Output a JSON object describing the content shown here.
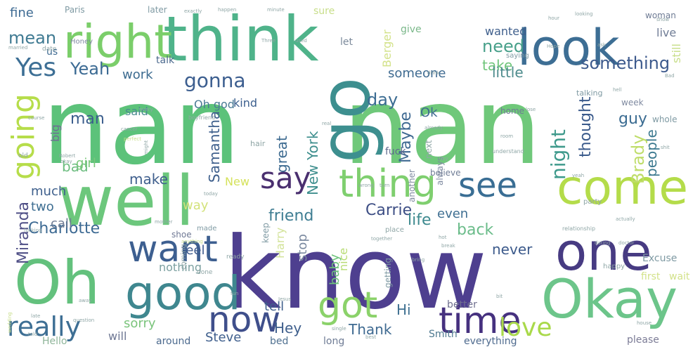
{
  "words": [
    {
      "text": "nan",
      "color": "#5cc27a"
    },
    {
      "text": "nan",
      "color": "#6fc87a"
    },
    {
      "text": "know",
      "color": "#4e3f8f"
    },
    {
      "text": "think",
      "color": "#4fb38a"
    },
    {
      "text": "right",
      "color": "#7bce6a"
    },
    {
      "text": "look",
      "color": "#3d6e94"
    },
    {
      "text": "well",
      "color": "#6cc77c"
    },
    {
      "text": "go",
      "color": "#3d8f8f"
    },
    {
      "text": "come",
      "color": "#b4dc4a"
    },
    {
      "text": "one",
      "color": "#473b82"
    },
    {
      "text": "Oh",
      "color": "#63c17d"
    },
    {
      "text": "Okay",
      "color": "#6cc58a"
    },
    {
      "text": "good",
      "color": "#3f878f"
    },
    {
      "text": "time",
      "color": "#46317f"
    },
    {
      "text": "say",
      "color": "#4a2f6f"
    },
    {
      "text": "thing",
      "color": "#7fcf6f"
    },
    {
      "text": "want",
      "color": "#3d5f90"
    },
    {
      "text": "see",
      "color": "#3a6e94"
    },
    {
      "text": "now",
      "color": "#3f4f8b"
    },
    {
      "text": "got",
      "color": "#8bd26a"
    },
    {
      "text": "really",
      "color": "#3e6f94"
    },
    {
      "text": "love",
      "color": "#a9d94a"
    },
    {
      "text": "Yes",
      "color": "#3d6f95"
    },
    {
      "text": "going",
      "color": "#b6dd4a"
    },
    {
      "text": "gonna",
      "color": "#3c5e8f"
    },
    {
      "text": "Yeah",
      "color": "#3b6a93"
    },
    {
      "text": "mean",
      "color": "#3f7a92"
    },
    {
      "text": "fine",
      "color": "#3e6b93"
    },
    {
      "text": "need",
      "color": "#48a08a"
    },
    {
      "text": "take",
      "color": "#6fc57a"
    },
    {
      "text": "little",
      "color": "#4e8c8d"
    },
    {
      "text": "something",
      "color": "#3d5a8d"
    },
    {
      "text": "day",
      "color": "#3b6c92"
    },
    {
      "text": "night",
      "color": "#3f9a8c"
    },
    {
      "text": "thought",
      "color": "#3a5a8b"
    },
    {
      "text": "guy",
      "color": "#3b6c92"
    },
    {
      "text": "people",
      "color": "#3d7a90"
    },
    {
      "text": "Brady",
      "color": "#bfdd6a"
    },
    {
      "text": "Miranda",
      "color": "#4f4f86"
    },
    {
      "text": "Charlotte",
      "color": "#3d6a93"
    },
    {
      "text": "Samantha",
      "color": "#3e5f8c"
    },
    {
      "text": "Carrie",
      "color": "#3e4f85"
    },
    {
      "text": "friend",
      "color": "#3e7d92"
    },
    {
      "text": "New York",
      "color": "#3f8f8e"
    },
    {
      "text": "Maybe",
      "color": "#3f6a92"
    },
    {
      "text": "great",
      "color": "#3c6a90"
    },
    {
      "text": "man",
      "color": "#3b5e8d"
    },
    {
      "text": "big",
      "color": "#6e6e94"
    },
    {
      "text": "bad",
      "color": "#6dbd80"
    },
    {
      "text": "girl",
      "color": "#7ac77a"
    },
    {
      "text": "make",
      "color": "#3f5f8d"
    },
    {
      "text": "much",
      "color": "#3e5f8c"
    },
    {
      "text": "two",
      "color": "#3e6e92"
    },
    {
      "text": "call",
      "color": "#6f7c95"
    },
    {
      "text": "way",
      "color": "#d3e27b"
    },
    {
      "text": "New",
      "color": "#d5e25b"
    },
    {
      "text": "work",
      "color": "#3c6b90"
    },
    {
      "text": "Oh god",
      "color": "#4a7b95"
    },
    {
      "text": "kind",
      "color": "#3c5f8e"
    },
    {
      "text": "said",
      "color": "#4b8c90"
    },
    {
      "text": "Ok",
      "color": "#3f6b91"
    },
    {
      "text": "someone",
      "color": "#3f6b91"
    },
    {
      "text": "Berger",
      "color": "#d3e28a"
    },
    {
      "text": "back",
      "color": "#6bbc8a"
    },
    {
      "text": "never",
      "color": "#3c5a8b"
    },
    {
      "text": "life",
      "color": "#3e8a8f"
    },
    {
      "text": "even",
      "color": "#3f6f92"
    },
    {
      "text": "feel",
      "color": "#3d5a8c"
    },
    {
      "text": "stop",
      "color": "#7b8aa0"
    },
    {
      "text": "baby",
      "color": "#6fc47c"
    },
    {
      "text": "nice",
      "color": "#b8dc74"
    },
    {
      "text": "Harry",
      "color": "#d3e39a"
    },
    {
      "text": "nothing",
      "color": "#7ca0a0"
    },
    {
      "text": "tell",
      "color": "#3f5f8b"
    },
    {
      "text": "Hi",
      "color": "#3f7091"
    },
    {
      "text": "Hey",
      "color": "#3f5f8c"
    },
    {
      "text": "Thank",
      "color": "#3f6a91"
    },
    {
      "text": "sorry",
      "color": "#7bc47c"
    },
    {
      "text": "will",
      "color": "#6f7894"
    },
    {
      "text": "Steve",
      "color": "#3f5f8d"
    },
    {
      "text": "Hello",
      "color": "#8fb59a"
    },
    {
      "text": "around",
      "color": "#4c6a8e"
    },
    {
      "text": "better",
      "color": "#6f6f8f"
    },
    {
      "text": "bed",
      "color": "#4f7090"
    },
    {
      "text": "Smith",
      "color": "#4f7a90"
    },
    {
      "text": "everything",
      "color": "#4e6a8e"
    },
    {
      "text": "long",
      "color": "#6f7c95"
    },
    {
      "text": "please",
      "color": "#7c7c96"
    },
    {
      "text": "still",
      "color": "#c8de8a"
    },
    {
      "text": "live",
      "color": "#6f7c95"
    },
    {
      "text": "wanted",
      "color": "#3f5f8c"
    },
    {
      "text": "talk",
      "color": "#4c6a8e"
    },
    {
      "text": "let",
      "color": "#7c8a9b"
    },
    {
      "text": "later",
      "color": "#7f9aa3"
    },
    {
      "text": "give",
      "color": "#7bb88a"
    },
    {
      "text": "Paris",
      "color": "#7f9aa3"
    },
    {
      "text": "us",
      "color": "#3f6b91"
    },
    {
      "text": "Honey",
      "color": "#7f8aa0"
    },
    {
      "text": "fuck",
      "color": "#5f6a8e"
    },
    {
      "text": "another",
      "color": "#7f8aa0"
    },
    {
      "text": "Excuse",
      "color": "#7f9aa3"
    },
    {
      "text": "first",
      "color": "#d3e28a"
    },
    {
      "text": "wait",
      "color": "#d3e28a"
    },
    {
      "text": "getting",
      "color": "#7f9aa3"
    },
    {
      "text": "believe",
      "color": "#6f7c95"
    },
    {
      "text": "always",
      "color": "#7f8aa0"
    },
    {
      "text": "home",
      "color": "#6f7c95"
    },
    {
      "text": "week",
      "color": "#7f8aa0"
    },
    {
      "text": "whole",
      "color": "#7f9aa3"
    },
    {
      "text": "keep",
      "color": "#7f9aa3"
    },
    {
      "text": "made",
      "color": "#7f9aa3"
    },
    {
      "text": "sure",
      "color": "#c8de8a"
    },
    {
      "text": "woman",
      "color": "#6f7c95"
    },
    {
      "text": "talking",
      "color": "#7f9aa3"
    },
    {
      "text": "saying",
      "color": "#7f9aa3"
    },
    {
      "text": "hair",
      "color": "#8fa6a6"
    },
    {
      "text": "next",
      "color": "#8fa6a6"
    },
    {
      "text": "shoe",
      "color": "#6f7894"
    },
    {
      "text": "coming",
      "color": "#8fa6a6"
    },
    {
      "text": "place",
      "color": "#8fa6a6"
    },
    {
      "text": "party",
      "color": "#8fa6a6"
    },
    {
      "text": "happy",
      "color": "#8fa6a6"
    },
    {
      "text": "ready",
      "color": "#8fa6a6"
    },
    {
      "text": "done",
      "color": "#8fa6a6"
    },
    {
      "text": "old",
      "color": "#8fa6a6"
    },
    {
      "text": "date",
      "color": "#8fa6a6"
    },
    {
      "text": "boyfriend",
      "color": "#8fa6a6"
    },
    {
      "text": "understand",
      "color": "#8fa6a6"
    },
    {
      "text": "relationship",
      "color": "#8fa6a6"
    },
    {
      "text": "together",
      "color": "#8fa6a6"
    },
    {
      "text": "exactly",
      "color": "#8fa6a6"
    },
    {
      "text": "happen",
      "color": "#8fa6a6"
    },
    {
      "text": "minute",
      "color": "#8fa6a6"
    },
    {
      "text": "hour",
      "color": "#8fa6a6"
    },
    {
      "text": "looking",
      "color": "#8fa6a6"
    },
    {
      "text": "Three",
      "color": "#8fa6a6"
    },
    {
      "text": "used",
      "color": "#8fa6a6"
    },
    {
      "text": "Hope",
      "color": "#8fa6a6"
    },
    {
      "text": "room",
      "color": "#8fa6a6"
    },
    {
      "text": "married",
      "color": "#8fa6a6"
    },
    {
      "text": "course",
      "color": "#8fa6a6"
    },
    {
      "text": "cancer",
      "color": "#8fa6a6"
    },
    {
      "text": "perfect",
      "color": "#c8de8a"
    },
    {
      "text": "might",
      "color": "#8fa6a6"
    },
    {
      "text": "already",
      "color": "#8fa6a6"
    },
    {
      "text": "real",
      "color": "#8fa6a6"
    },
    {
      "text": "wrong",
      "color": "#8fa6a6"
    },
    {
      "text": "turn",
      "color": "#8fa6a6"
    },
    {
      "text": "today",
      "color": "#8fa6a6"
    },
    {
      "text": "mother",
      "color": "#8fa6a6"
    },
    {
      "text": "question",
      "color": "#8fa6a6"
    },
    {
      "text": "single",
      "color": "#8fa6a6"
    },
    {
      "text": "dating",
      "color": "#8fa6a6"
    },
    {
      "text": "doctor",
      "color": "#8fa6a6"
    },
    {
      "text": "actually",
      "color": "#8fa6a6"
    },
    {
      "text": "house",
      "color": "#8fa6a6"
    },
    {
      "text": "best",
      "color": "#8fa6a6"
    },
    {
      "text": "fucking",
      "color": "#8fa6a6"
    },
    {
      "text": "wedding",
      "color": "#c8de8a"
    },
    {
      "text": "anything",
      "color": "#c8de8a"
    },
    {
      "text": "break",
      "color": "#8fa6a6"
    },
    {
      "text": "every",
      "color": "#8fa6a6"
    },
    {
      "text": "Robert",
      "color": "#8fa6a6"
    },
    {
      "text": "okay",
      "color": "#8fa6a6"
    },
    {
      "text": "late",
      "color": "#8fa6a6"
    },
    {
      "text": "told",
      "color": "#8fa6a6"
    },
    {
      "text": "away",
      "color": "#8fa6a6"
    },
    {
      "text": "hot",
      "color": "#8fa6a6"
    },
    {
      "text": "drink",
      "color": "#8fa6a6"
    },
    {
      "text": "lose",
      "color": "#8fa6a6"
    },
    {
      "text": "try",
      "color": "#8fa6a6"
    },
    {
      "text": "hell",
      "color": "#8fa6a6"
    },
    {
      "text": "shit",
      "color": "#8fa6a6"
    },
    {
      "text": "Bad",
      "color": "#8fa6a6"
    },
    {
      "text": "show",
      "color": "#8fa6a6"
    },
    {
      "text": "ask",
      "color": "#8fa6a6"
    },
    {
      "text": "bring",
      "color": "#8fa6a6"
    },
    {
      "text": "Jesus",
      "color": "#8fa6a6"
    },
    {
      "text": "fun",
      "color": "#8fa6a6"
    },
    {
      "text": "bit",
      "color": "#8fa6a6"
    },
    {
      "text": "yeah",
      "color": "#8fa6a6"
    }
  ]
}
